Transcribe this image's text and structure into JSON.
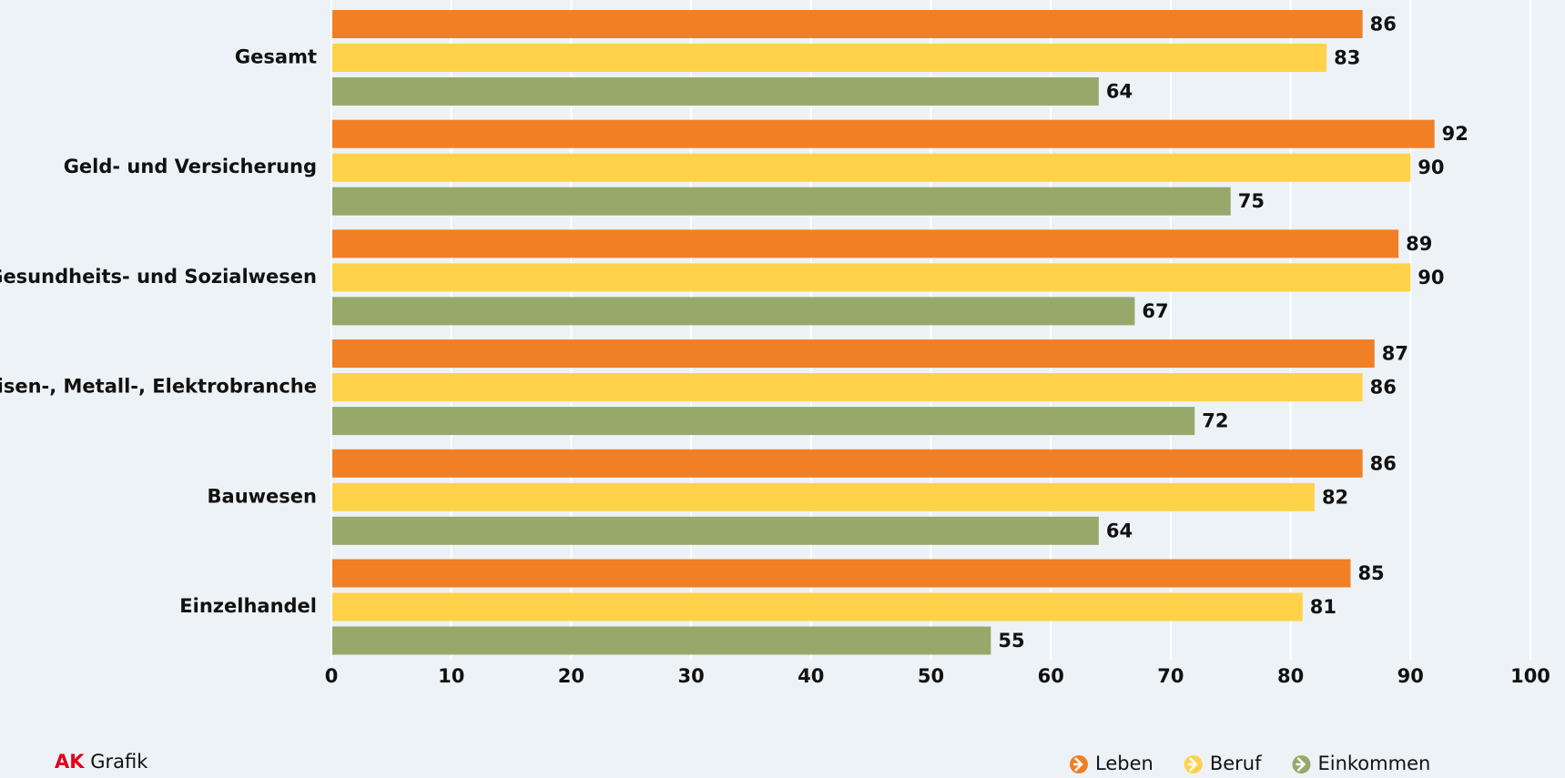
{
  "chart_data": {
    "type": "bar",
    "orientation": "horizontal",
    "categories": [
      "Gesamt",
      "Geld- und Versicherung",
      "Gesundheits- und Sozialwesen",
      "Eisen-, Metall-, Elektrobranche",
      "Bauwesen",
      "Einzelhandel"
    ],
    "series": [
      {
        "name": "Leben",
        "color": "#f07f26",
        "values": [
          86,
          92,
          89,
          87,
          86,
          85
        ]
      },
      {
        "name": "Beruf",
        "color": "#ffd24a",
        "values": [
          83,
          90,
          90,
          86,
          82,
          81
        ]
      },
      {
        "name": "Einkommen",
        "color": "#97a96a",
        "values": [
          64,
          75,
          67,
          72,
          64,
          55
        ]
      }
    ],
    "xlim": [
      0,
      100
    ],
    "xticks": [
      0,
      10,
      20,
      30,
      40,
      50,
      60,
      70,
      80,
      90,
      100
    ],
    "grid": true,
    "legend": "bottom-right"
  },
  "credit": {
    "brand": "AK",
    "text": "Grafik"
  }
}
